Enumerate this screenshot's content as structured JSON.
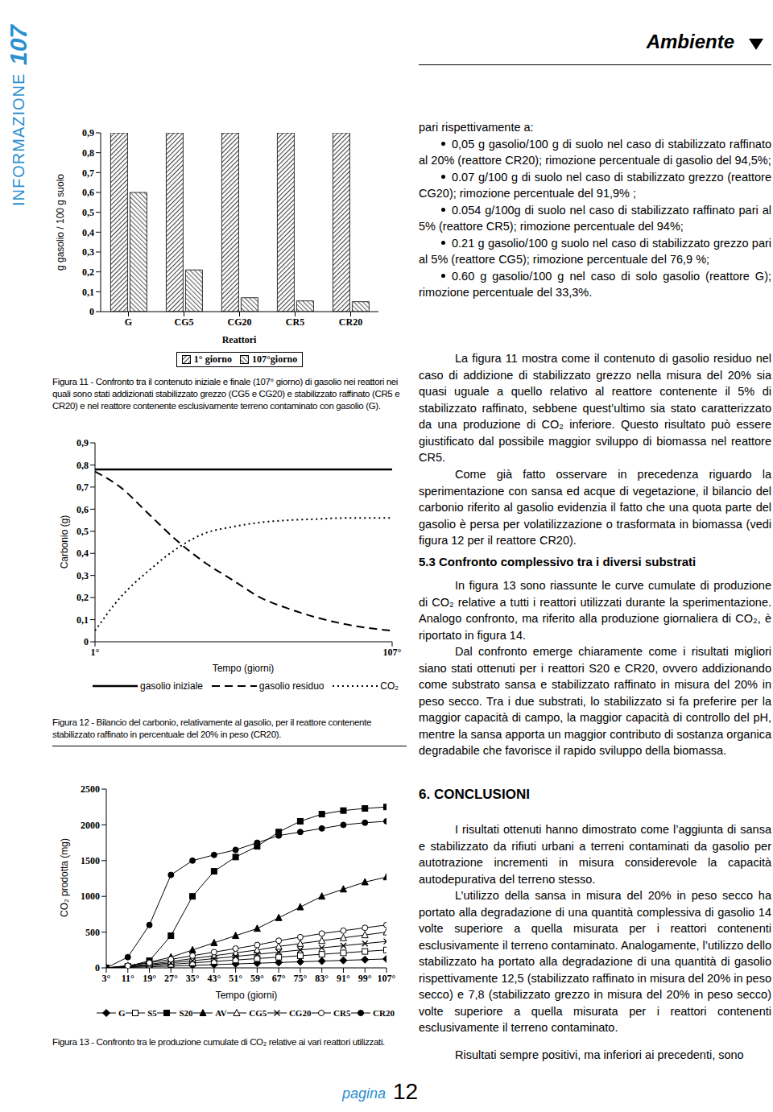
{
  "header": {
    "magazine": "INFORMAZIONE",
    "issue": "107",
    "section": "Ambiente"
  },
  "chart_data": [
    {
      "type": "bar",
      "title": "Figura 11 - Confronto tra il contenuto iniziale e finale (107° giorno) di gasolio nei reattori nei quali sono stati addizionati stabilizzato grezzo (CG5 e CG20) e stabilizzato raffinato (CR5 e CR20) e nel reattore contenente esclusivamente terreno contaminato con gasolio (G).",
      "x_label": "Reattori",
      "y_label": "g gasolio / 100 g suolo",
      "categories": [
        "G",
        "CG5",
        "CG20",
        "CR5",
        "CR20"
      ],
      "series": [
        {
          "name": "1° giorno",
          "color": "#444444",
          "values": [
            0.9,
            0.9,
            0.9,
            0.9,
            0.9
          ]
        },
        {
          "name": "107°giorno",
          "color": "#666666",
          "values": [
            0.6,
            0.21,
            0.07,
            0.054,
            0.05
          ]
        }
      ],
      "ylim": [
        0,
        0.9
      ],
      "yticks": [
        0,
        {
          "value": 0.1,
          "label": "0,1"
        },
        {
          "value": 0.2,
          "label": "0,2"
        },
        {
          "value": 0.3,
          "label": "0,3"
        },
        {
          "value": 0.4,
          "label": "0,4"
        },
        {
          "value": 0.5,
          "label": "0,5"
        },
        {
          "value": 0.6,
          "label": "0,6"
        },
        {
          "value": 0.7,
          "label": "0,7"
        },
        {
          "value": 0.8,
          "label": "0,8"
        },
        {
          "value": 0.9,
          "label": "0,9"
        }
      ],
      "grid": false,
      "legend": "bottom"
    },
    {
      "type": "line",
      "title": "Figura 12 - Bilancio del carbonio, relativamente al gasolio, per il reattore contenente stabilizzato raffinato in percentuale del 20% in peso (CR20).",
      "x_label": "Tempo (giorni)",
      "y_label": "Carbonio (g)",
      "x": [
        1,
        10,
        20,
        30,
        40,
        50,
        60,
        70,
        80,
        90,
        100,
        107
      ],
      "series": [
        {
          "name": "gasolio iniziale",
          "color": "#000000",
          "line_style": "solid",
          "values": [
            0.78,
            0.78,
            0.78,
            0.78,
            0.78,
            0.78,
            0.78,
            0.78,
            0.78,
            0.78,
            0.78,
            0.78
          ]
        },
        {
          "name": "gasolio residuo",
          "color": "#000000",
          "line_style": "dashed",
          "values": [
            0.77,
            0.7,
            0.58,
            0.46,
            0.36,
            0.28,
            0.2,
            0.15,
            0.11,
            0.08,
            0.06,
            0.05
          ]
        },
        {
          "name": "CO₂",
          "color": "#000000",
          "line_style": "dotted",
          "values": [
            0.05,
            0.2,
            0.32,
            0.42,
            0.49,
            0.52,
            0.54,
            0.55,
            0.555,
            0.56,
            0.56,
            0.56
          ]
        }
      ],
      "xlim": [
        1,
        107
      ],
      "xticks": [
        {
          "value": 1,
          "label": "1°"
        },
        {
          "value": 107,
          "label": "107°"
        }
      ],
      "ylim": [
        0,
        0.9
      ],
      "yticks": [
        0,
        {
          "value": 0.1,
          "label": "0,1"
        },
        {
          "value": 0.2,
          "label": "0,2"
        },
        {
          "value": 0.3,
          "label": "0,3"
        },
        {
          "value": 0.4,
          "label": "0,4"
        },
        {
          "value": 0.5,
          "label": "0,5"
        },
        {
          "value": 0.6,
          "label": "0,6"
        },
        {
          "value": 0.7,
          "label": "0,7"
        },
        {
          "value": 0.8,
          "label": "0,8"
        },
        {
          "value": 0.9,
          "label": "0,9"
        }
      ],
      "grid": false,
      "legend": "bottom"
    },
    {
      "type": "line",
      "title": "Figura 13 - Confronto tra le produzione cumulate di CO₂ relative ai vari reattori utilizzati.",
      "x_label": "Tempo (giorni)",
      "y_label": "CO₂ prodotta (mg)",
      "x": [
        3,
        11,
        19,
        27,
        35,
        43,
        51,
        59,
        67,
        75,
        83,
        91,
        99,
        107
      ],
      "series": [
        {
          "name": "G",
          "color": "#000000",
          "marker": "filled_diamond",
          "values": [
            0,
            5,
            15,
            25,
            35,
            45,
            55,
            65,
            75,
            85,
            95,
            105,
            115,
            125
          ]
        },
        {
          "name": "S5",
          "color": "#000000",
          "marker": "open_square",
          "values": [
            0,
            10,
            30,
            50,
            70,
            90,
            110,
            130,
            150,
            170,
            190,
            210,
            230,
            250
          ]
        },
        {
          "name": "S20",
          "color": "#000000",
          "marker": "filled_square",
          "values": [
            0,
            20,
            100,
            450,
            1000,
            1350,
            1550,
            1700,
            1900,
            2050,
            2150,
            2200,
            2230,
            2250
          ]
        },
        {
          "name": "AV",
          "color": "#000000",
          "marker": "filled_triangle",
          "values": [
            0,
            30,
            80,
            150,
            250,
            350,
            450,
            550,
            700,
            850,
            1000,
            1100,
            1200,
            1270
          ]
        },
        {
          "name": "CG5",
          "color": "#000000",
          "marker": "open_triangle",
          "values": [
            0,
            20,
            50,
            90,
            130,
            170,
            210,
            250,
            300,
            340,
            380,
            420,
            460,
            500
          ]
        },
        {
          "name": "CG20",
          "color": "#000000",
          "marker": "cross",
          "values": [
            0,
            15,
            40,
            70,
            100,
            130,
            160,
            190,
            220,
            250,
            280,
            310,
            340,
            370
          ]
        },
        {
          "name": "CR5",
          "color": "#000000",
          "marker": "open_circle",
          "values": [
            0,
            30,
            70,
            120,
            170,
            220,
            270,
            320,
            380,
            430,
            480,
            520,
            560,
            600
          ]
        },
        {
          "name": "CR20",
          "color": "#000000",
          "marker": "filled_circle",
          "values": [
            0,
            150,
            600,
            1300,
            1500,
            1580,
            1650,
            1750,
            1850,
            1900,
            1950,
            2000,
            2030,
            2050
          ]
        }
      ],
      "xlim": [
        3,
        107
      ],
      "xticks": [
        {
          "value": 3,
          "label": "3°"
        },
        {
          "value": 11,
          "label": "11°"
        },
        {
          "value": 19,
          "label": "19°"
        },
        {
          "value": 27,
          "label": "27°"
        },
        {
          "value": 35,
          "label": "35°"
        },
        {
          "value": 43,
          "label": "43°"
        },
        {
          "value": 51,
          "label": "51°"
        },
        {
          "value": 59,
          "label": "59°"
        },
        {
          "value": 67,
          "label": "67°"
        },
        {
          "value": 75,
          "label": "75°"
        },
        {
          "value": 83,
          "label": "83°"
        },
        {
          "value": 91,
          "label": "91°"
        },
        {
          "value": 99,
          "label": "99°"
        },
        {
          "value": 107,
          "label": "107°"
        }
      ],
      "ylim": [
        0,
        2500
      ],
      "yticks": [
        0,
        500,
        1000,
        1500,
        2000,
        2500
      ],
      "grid": false,
      "legend": "bottom"
    }
  ],
  "body": {
    "intro": "pari rispettivamente a:",
    "bullets": [
      "0,05 g gasolio/100 g di suolo nel caso di stabilizzato raffinato al 20% (reattore CR20); rimozione percentuale di gasolio del 94,5%;",
      "0.07 g/100 g di suolo nel caso di stabilizzato grezzo (reattore CG20); rimozione percentuale del 91,9% ;",
      "0.054 g/100g di suolo nel caso di stabilizzato raffinato pari al 5% (reattore CR5); rimozione percentuale del 94%;",
      "0.21 g gasolio/100 g suolo nel caso di stabilizzato grezzo pari al 5% (reattore CG5); rimozione percentuale del 76,9 %;",
      "0.60 g gasolio/100 g nel caso di solo gasolio (reattore G); rimozione percentuale del 33,3%."
    ],
    "paragraphs_1": [
      "La figura 11 mostra come il contenuto di gasolio residuo nel caso di addizione di stabilizzato grezzo nella misura del 20% sia quasi uguale a quello relativo al reattore contenente il 5% di stabilizzato raffinato, sebbene quest’ultimo sia stato caratterizzato da una produzione di CO₂ inferiore. Questo risultato può essere giustificato dal possibile maggior sviluppo di biomassa nel reattore CR5.",
      "Come già fatto osservare in precedenza riguardo la sperimentazione con sansa ed acque di vegetazione, il bilancio del carbonio riferito al gasolio evidenzia il fatto che una quota parte del gasolio è persa per volatilizzazione o trasformata in biomassa (vedi figura 12 per il reattore CR20)."
    ],
    "heading_1": "5.3 Confronto complessivo tra i diversi substrati",
    "paragraphs_2": [
      "In figura 13 sono riassunte le curve cumulate di produzione di CO₂ relative a tutti i reattori utilizzati durante la sperimentazione. Analogo confronto, ma riferito alla produzione giornaliera di CO₂, è riportato in figura 14.",
      "Dal confronto emerge chiaramente come i risultati migliori siano stati ottenuti per i reattori S20 e CR20, ovvero addizionando come substrato sansa e stabilizzato raffinato in misura del 20% in peso secco. Tra i due substrati, lo stabilizzato si fa preferire per la maggior capacità di campo, la maggior capacità di controllo del pH, mentre la sansa apporta un maggior contributo di sostanza organica degradabile che favorisce il rapido sviluppo della biomassa."
    ],
    "heading_2": "6. CONCLUSIONI",
    "paragraphs_3": [
      "I risultati ottenuti hanno dimostrato come l’aggiunta di sansa e stabilizzato da rifiuti urbani a terreni contaminati da gasolio per autotrazione incrementi in misura considerevole la capacità autodepurativa del terreno stesso.",
      "L’utilizzo della sansa in misura del 20% in peso secco ha portato alla degradazione di una quantità complessiva di gasolio 14 volte superiore a quella misurata per i reattori contenenti esclusivamente il terreno contaminato. Analogamente, l’utilizzo dello stabilizzato ha portato alla degradazione di una quantità di gasolio rispettivamente 12,5 (stabilizzato raffinato in misura del 20% in peso secco) e 7,8 (stabilizzato grezzo in misura del 20% in peso secco) volte superiore a quella misurata per i reattori contenenti esclusivamente il terreno contaminato.",
      "Risultati sempre positivi, ma inferiori ai precedenti, sono"
    ]
  },
  "footer": {
    "label": "pagina",
    "page": "12"
  }
}
